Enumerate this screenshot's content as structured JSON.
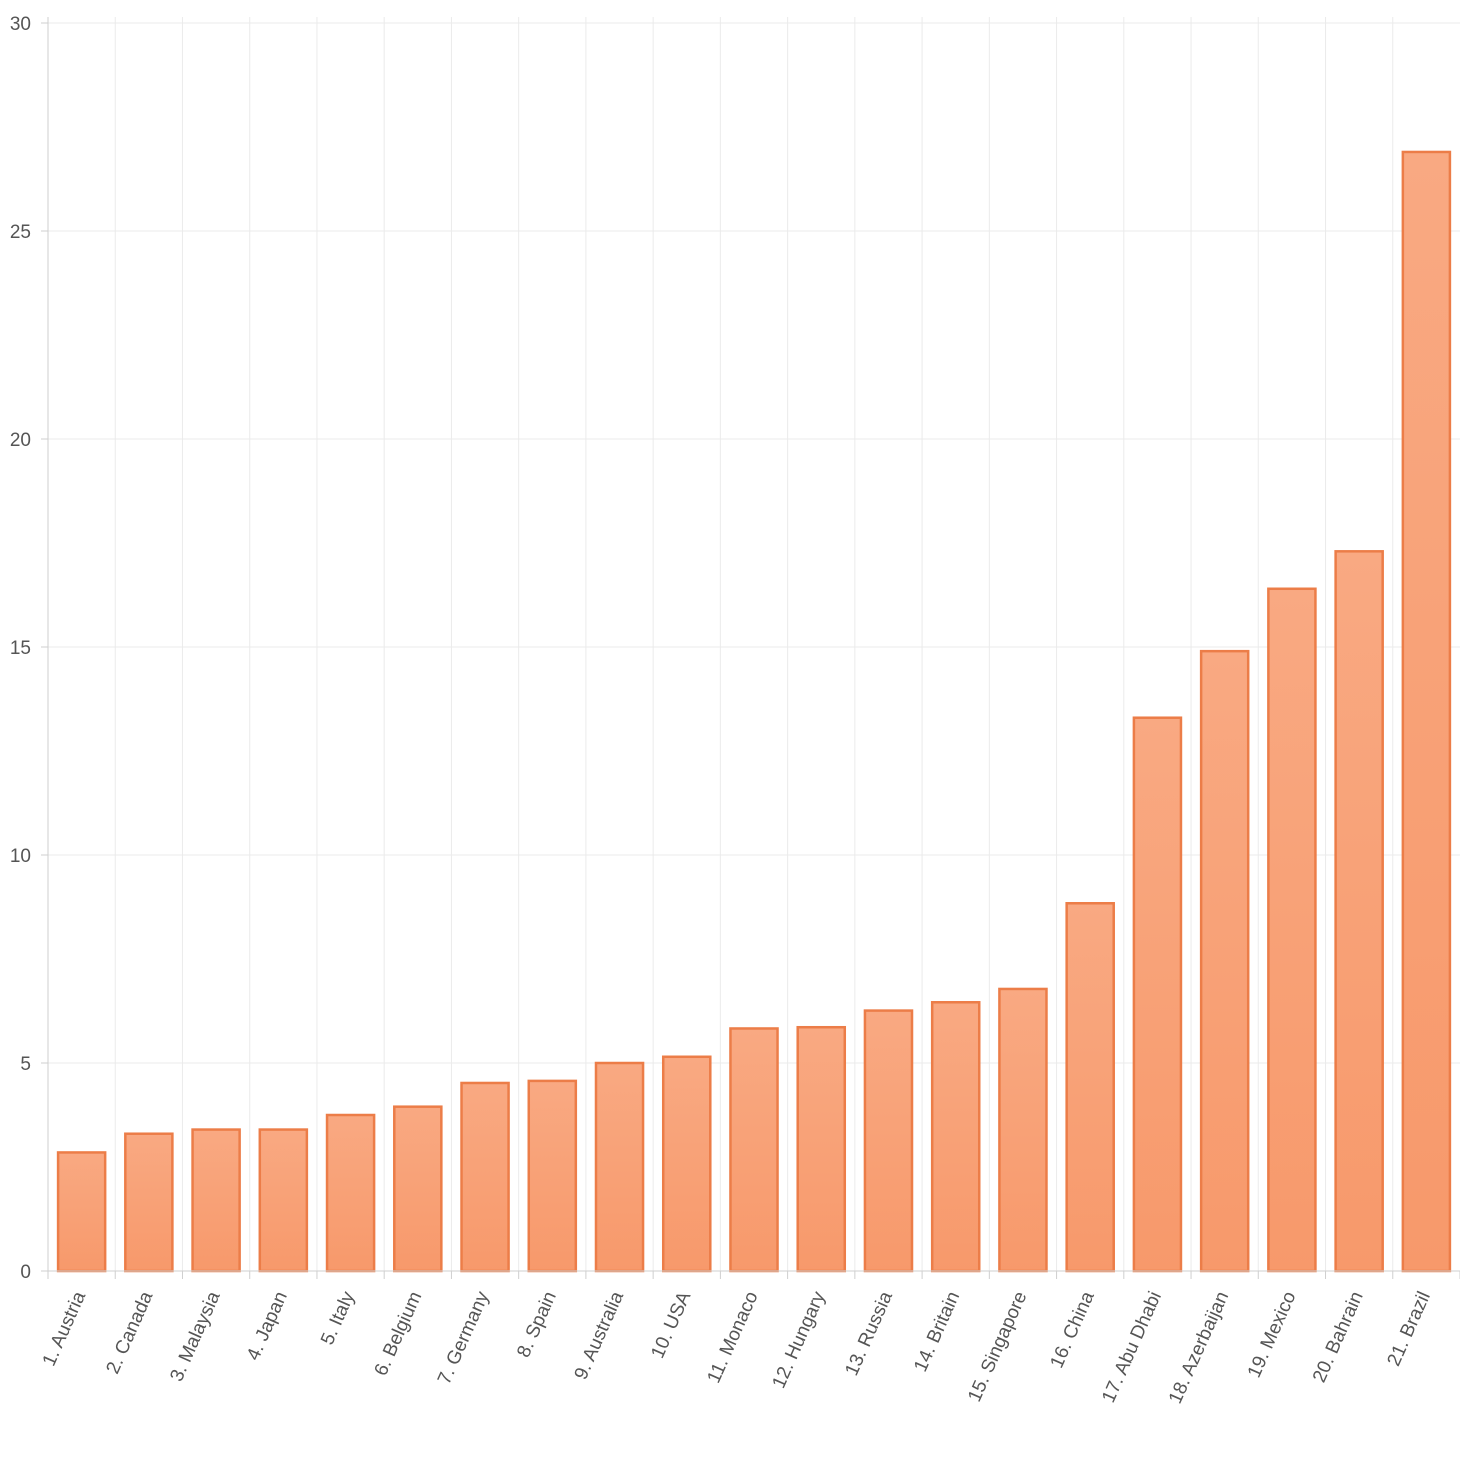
{
  "chart_data": {
    "type": "bar",
    "title": "",
    "xlabel": "",
    "ylabel": "",
    "categories": [
      "1. Austria",
      "2. Canada",
      "3. Malaysia",
      "4. Japan",
      "5. Italy",
      "6. Belgium",
      "7. Germany",
      "8. Spain",
      "9. Australia",
      "10. USA",
      "11. Monaco",
      "12. Hungary",
      "13. Russia",
      "14. Britain",
      "15. Singapore",
      "16. China",
      "17. Abu Dhabi",
      "18. Azerbaijan",
      "19. Mexico",
      "20. Bahrain",
      "21. Brazil"
    ],
    "values": [
      2.85,
      3.3,
      3.4,
      3.4,
      3.75,
      3.95,
      4.52,
      4.57,
      5.0,
      5.15,
      5.83,
      5.86,
      6.26,
      6.46,
      6.78,
      8.84,
      13.3,
      14.9,
      16.4,
      17.3,
      26.9
    ],
    "ylim": [
      0,
      30
    ],
    "yticks": [
      0,
      5,
      10,
      15,
      20,
      25,
      30
    ],
    "grid": true,
    "legend": "none",
    "colors": {
      "bar_fill": "#f7996b",
      "bar_fill_top": "#f9a982",
      "bar_stroke": "#ec7d48",
      "grid": "#ebebeb",
      "axis": "#cfcfcf",
      "text": "#555555"
    }
  }
}
